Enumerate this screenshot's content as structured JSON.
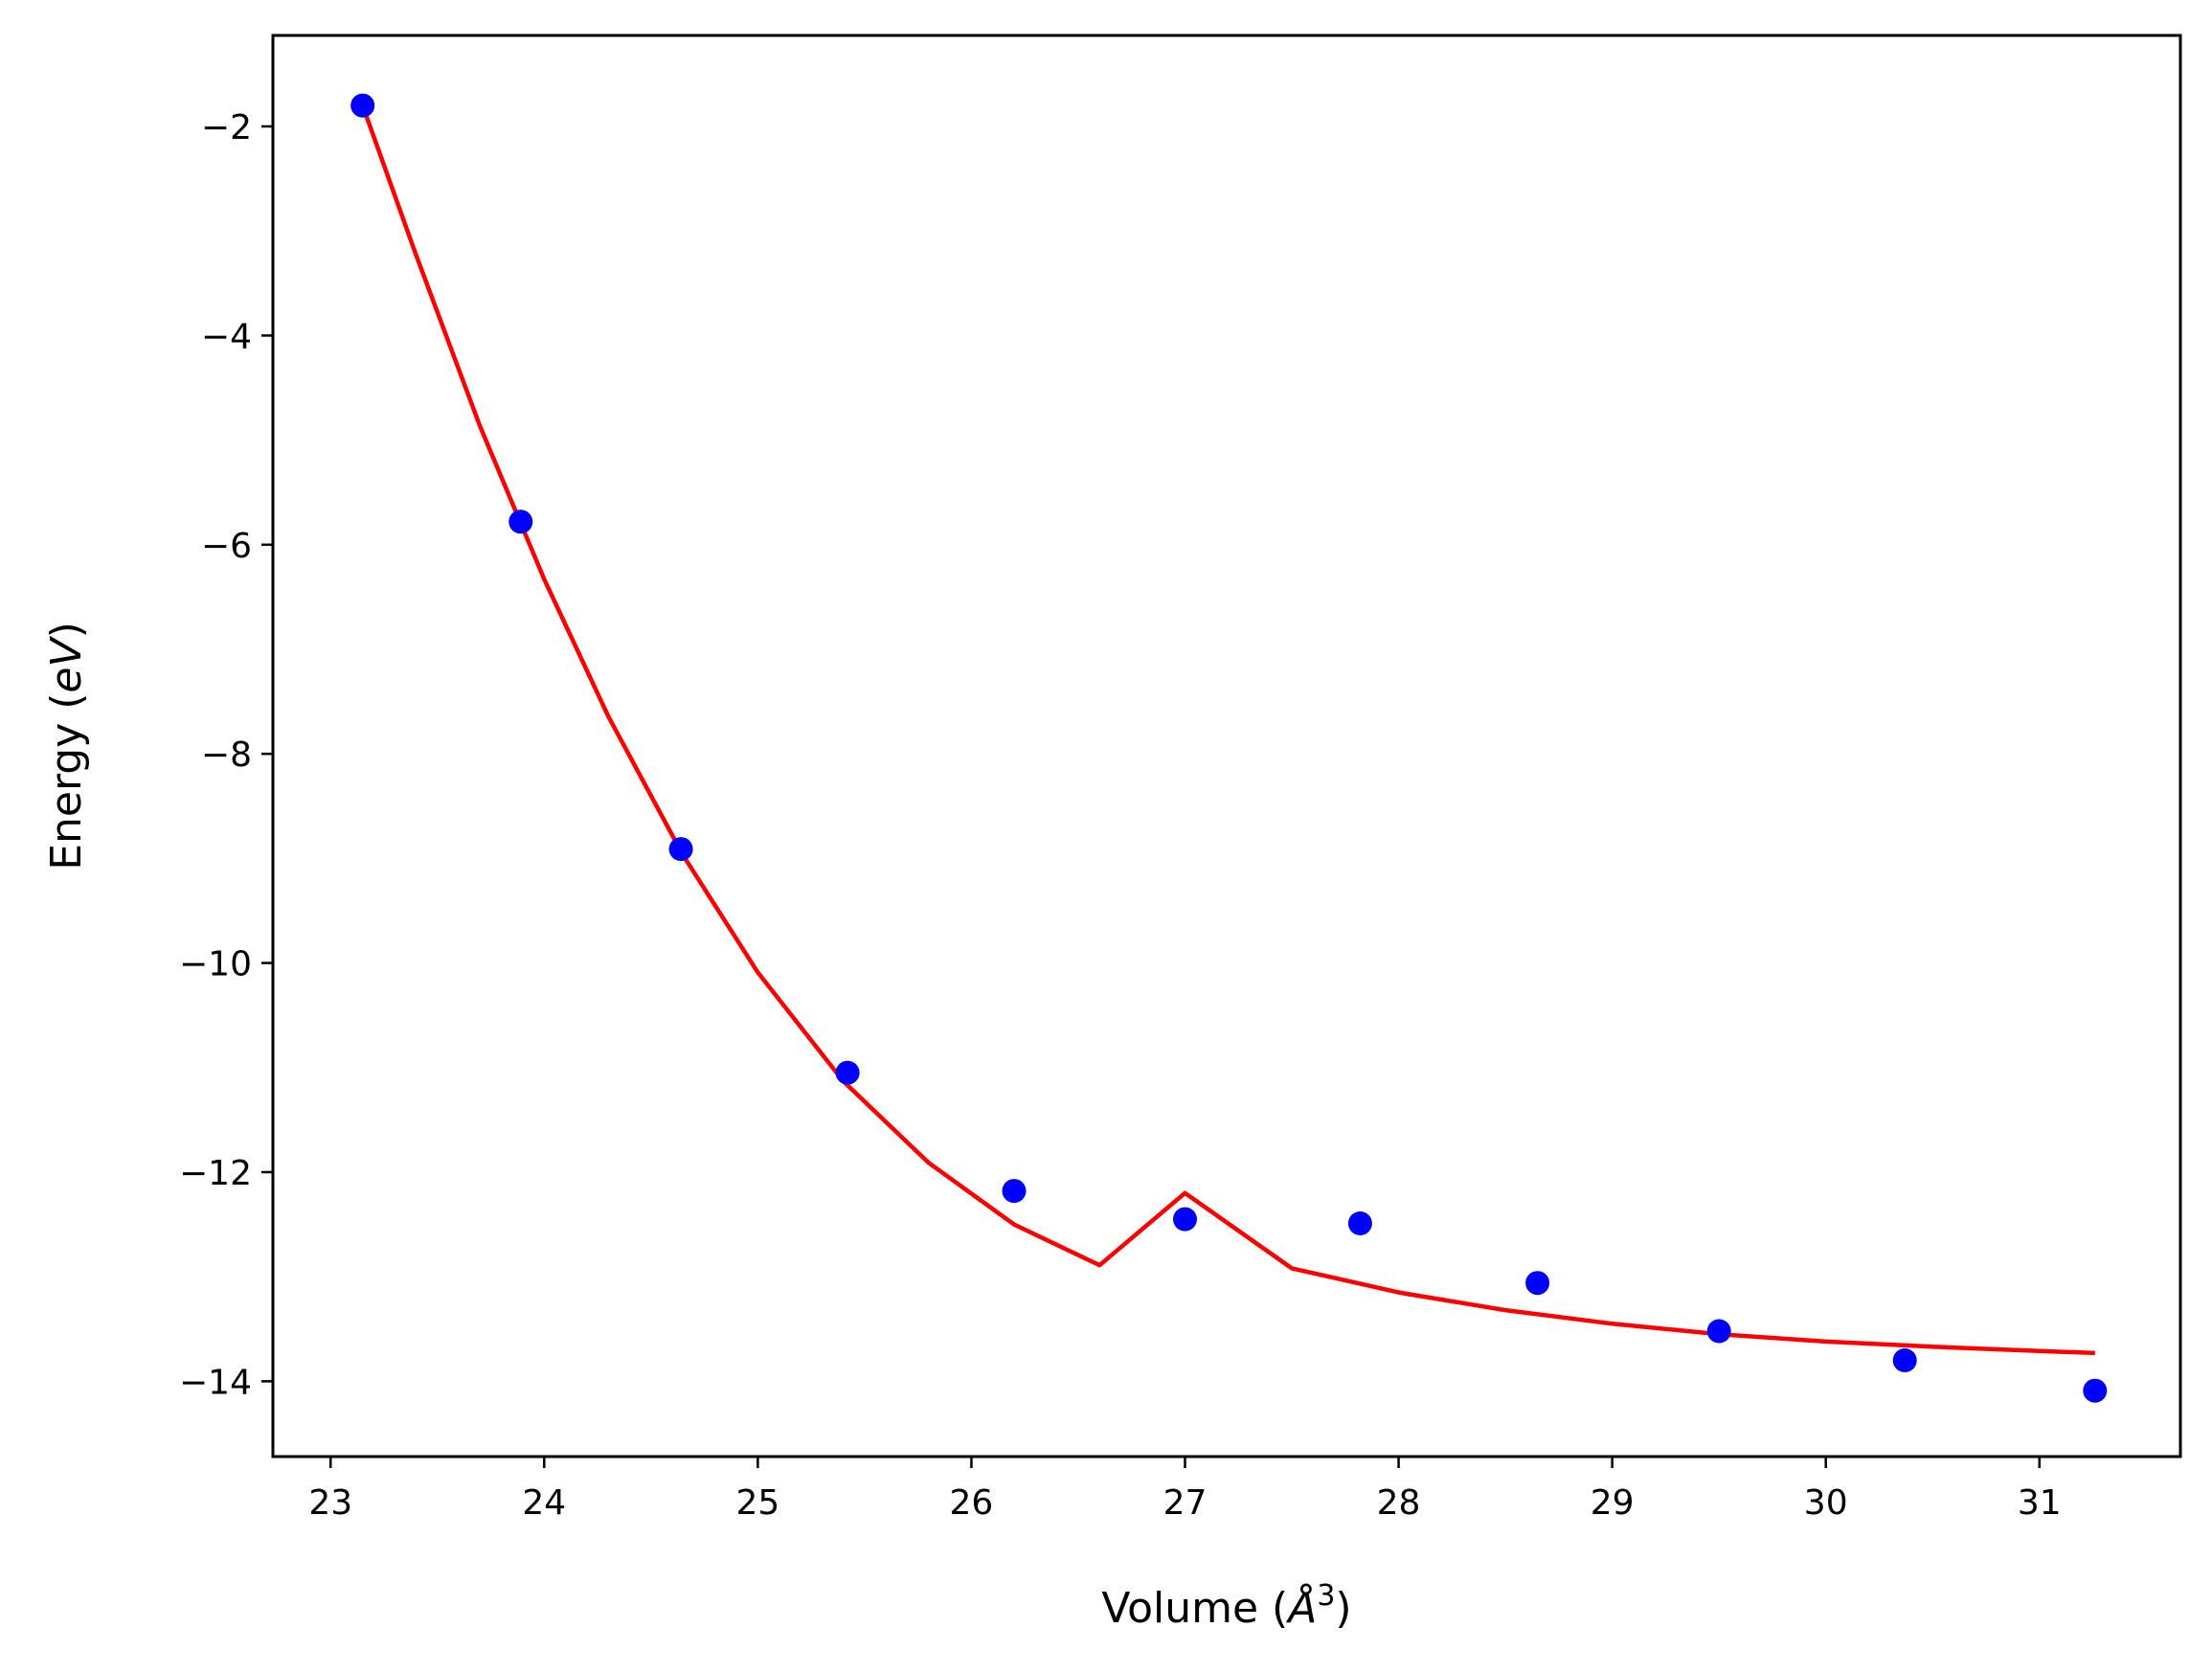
{
  "chart_data": {
    "type": "scatter",
    "title": "",
    "xlabel": "Volume (Å³)",
    "xlabel_parts": {
      "prefix": "Volume (",
      "symbol": "Å",
      "sup": "3",
      "suffix": ")"
    },
    "ylabel": "Energy (eV)",
    "ylabel_parts": {
      "prefix": "Energy (",
      "unit": "eV",
      "suffix": ")"
    },
    "xlim": [
      22.73,
      31.66
    ],
    "ylim": [
      -14.72,
      -1.13
    ],
    "xticks": [
      23,
      24,
      25,
      26,
      27,
      28,
      29,
      30,
      31
    ],
    "xtick_labels": [
      "23",
      "24",
      "25",
      "26",
      "27",
      "28",
      "29",
      "30",
      "31"
    ],
    "yticks": [
      -2,
      -4,
      -6,
      -8,
      -10,
      -12,
      -14
    ],
    "ytick_labels": [
      "−2",
      "−4",
      "−6",
      "−8",
      "−10",
      "−12",
      "−14"
    ],
    "grid": false,
    "series": [
      {
        "kind": "points",
        "color": "#0000ff",
        "x": [
          23.15,
          23.89,
          24.64,
          25.42,
          26.2,
          27.0,
          27.82,
          28.65,
          29.5,
          30.37,
          31.26
        ],
        "y": [
          -1.8,
          -5.78,
          -8.91,
          -11.05,
          -12.18,
          -12.45,
          -12.49,
          -13.06,
          -13.52,
          -13.8,
          -14.09
        ]
      },
      {
        "kind": "fit-line",
        "color": "#ff0000",
        "x": [
          23.15,
          23.4,
          23.7,
          24.0,
          24.3,
          24.65,
          25.0,
          25.4,
          25.8,
          26.2,
          26.6,
          27.0,
          27.5,
          28.0,
          28.5,
          29.0,
          29.5,
          30.0,
          30.5,
          31.0,
          31.26
        ],
        "y": [
          -1.8,
          -3.23,
          -4.87,
          -6.33,
          -7.64,
          -8.97,
          -10.09,
          -11.13,
          -11.91,
          -12.5,
          -12.89,
          -12.2,
          -12.92,
          -13.15,
          -13.32,
          -13.45,
          -13.55,
          -13.62,
          -13.67,
          -13.71,
          -13.73
        ]
      }
    ]
  }
}
